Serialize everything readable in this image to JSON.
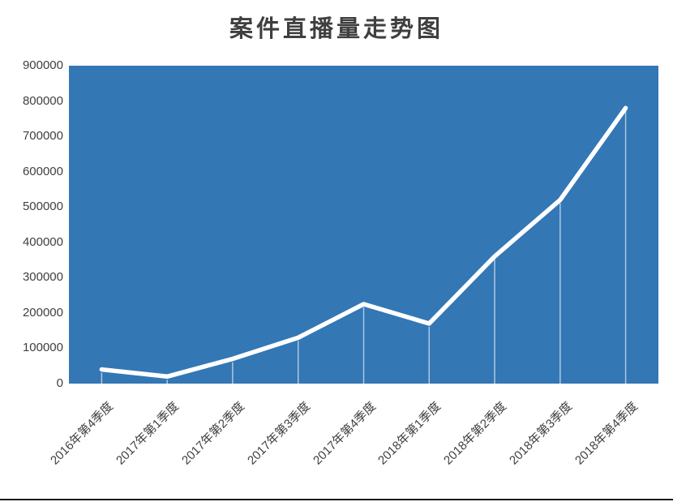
{
  "chart_data": {
    "type": "line",
    "title": "案件直播量走势图",
    "categories": [
      "2016年第4季度",
      "2017年第1季度",
      "2017年第2季度",
      "2017年第3季度",
      "2017年第4季度",
      "2018年第1季度",
      "2018年第2季度",
      "2018年第3季度",
      "2018年第4季度"
    ],
    "values": [
      40000,
      20000,
      70000,
      130000,
      225000,
      170000,
      360000,
      520000,
      780000
    ],
    "xlabel": "",
    "ylabel": "",
    "ylim": [
      0,
      900000
    ],
    "ytick_step": 100000,
    "ytick_labels": [
      "900000",
      "800000",
      "700000",
      "600000",
      "500000",
      "400000",
      "300000",
      "200000",
      "100000",
      "0"
    ],
    "grid": false,
    "legend": false,
    "colors": {
      "plot_background": "#3377b5",
      "trend_line": "#ffffff",
      "drop_line": "rgba(255,255,255,0.6)",
      "axis_text": "#404040",
      "title_text": "#3f3f3f",
      "bottom_rule": "#1a1a1a"
    }
  }
}
